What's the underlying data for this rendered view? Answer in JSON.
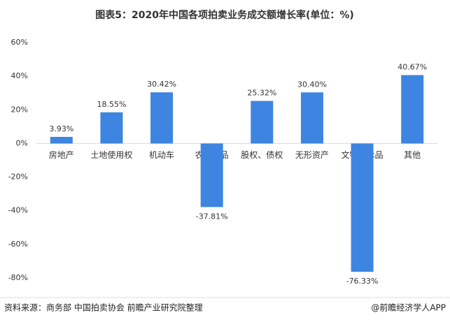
{
  "chart_data": {
    "type": "bar",
    "title": "图表5：2020年中国各项拍卖业务成交额增长率(单位：%)",
    "categories": [
      "房地产",
      "土地使用权",
      "机动车",
      "农副产品",
      "股权、债权",
      "无形资产",
      "文物艺术品",
      "其他"
    ],
    "values": [
      3.93,
      18.55,
      30.42,
      -37.81,
      25.32,
      30.4,
      -76.33,
      40.67
    ],
    "value_labels": [
      "3.93%",
      "18.55%",
      "30.42%",
      "-37.81%",
      "25.32%",
      "30.40%",
      "-76.33%",
      "40.67%"
    ],
    "color": "#3d85e0",
    "ylim": [
      -80,
      60
    ],
    "yticks": [
      {
        "value": -80,
        "label": "-80%"
      },
      {
        "value": -60,
        "label": "-60%"
      },
      {
        "value": -40,
        "label": "-40%"
      },
      {
        "value": -20,
        "label": "-20%"
      },
      {
        "value": 0,
        "label": "0%"
      },
      {
        "value": 20,
        "label": "20%"
      },
      {
        "value": 40,
        "label": "40%"
      },
      {
        "value": 60,
        "label": "60%"
      }
    ],
    "grid": false,
    "source": "资料来源：商务部 中国拍卖协会 前瞻产业研究院整理",
    "credit": "@前瞻经济学人APP"
  }
}
